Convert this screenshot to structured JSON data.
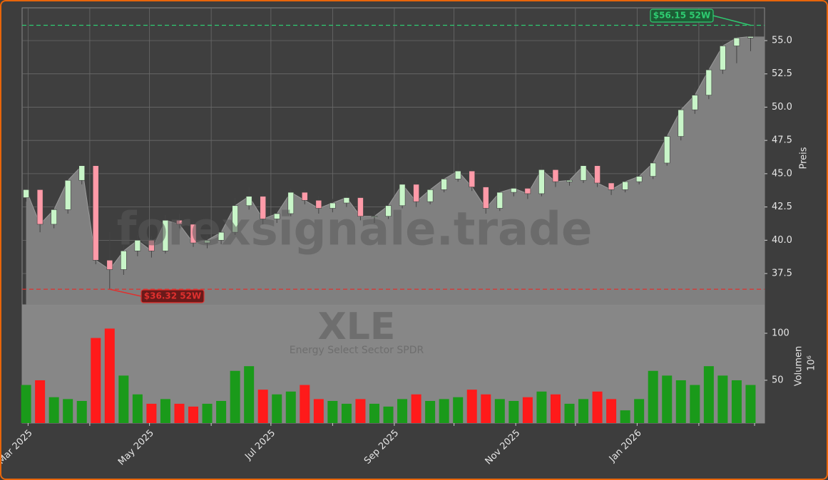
{
  "chart_data": [
    {
      "type": "candlestick",
      "watermark": "forexsignale.trade",
      "ylabel": "Preis",
      "x": [
        "2025-02-28",
        "2025-03-07",
        "2025-03-14",
        "2025-03-21",
        "2025-03-28",
        "2025-04-04",
        "2025-04-11",
        "2025-04-18",
        "2025-04-25",
        "2025-05-02",
        "2025-05-09",
        "2025-05-16",
        "2025-05-23",
        "2025-05-30",
        "2025-06-06",
        "2025-06-13",
        "2025-06-20",
        "2025-06-27",
        "2025-07-04",
        "2025-07-11",
        "2025-07-18",
        "2025-07-25",
        "2025-08-01",
        "2025-08-08",
        "2025-08-15",
        "2025-08-22",
        "2025-08-29",
        "2025-09-05",
        "2025-09-12",
        "2025-09-19",
        "2025-09-26",
        "2025-10-03",
        "2025-10-10",
        "2025-10-17",
        "2025-10-24",
        "2025-10-31",
        "2025-11-07",
        "2025-11-14",
        "2025-11-21",
        "2025-11-28",
        "2025-12-05",
        "2025-12-12",
        "2025-12-19",
        "2025-12-26",
        "2026-01-02",
        "2026-01-09",
        "2026-01-16",
        "2026-01-23",
        "2026-01-30",
        "2026-02-06",
        "2026-02-13",
        "2026-02-20",
        "2026-02-27"
      ],
      "open": [
        43.2,
        43.8,
        41.2,
        42.3,
        44.5,
        45.6,
        38.5,
        37.8,
        39.2,
        40.0,
        39.2,
        41.5,
        41.2,
        39.8,
        40.0,
        40.6,
        42.6,
        43.3,
        41.6,
        42.0,
        43.6,
        43.0,
        42.4,
        42.8,
        43.2,
        41.8,
        41.8,
        42.6,
        44.2,
        42.9,
        43.8,
        44.6,
        45.2,
        44.0,
        42.4,
        43.6,
        43.9,
        43.5,
        45.3,
        44.4,
        44.5,
        45.6,
        44.3,
        43.8,
        44.4,
        44.8,
        45.8,
        47.8,
        49.8,
        50.9,
        52.8,
        54.6,
        55.2
      ],
      "high": [
        44.2,
        44.0,
        42.8,
        44.8,
        46.0,
        45.9,
        40.6,
        39.6,
        40.4,
        40.3,
        41.9,
        42.0,
        41.4,
        40.4,
        40.9,
        43.2,
        44.0,
        43.5,
        42.3,
        43.9,
        43.8,
        43.3,
        43.1,
        43.7,
        43.4,
        42.2,
        42.9,
        44.6,
        44.5,
        44.1,
        44.9,
        45.8,
        45.4,
        44.2,
        43.9,
        44.1,
        44.0,
        45.7,
        45.5,
        44.8,
        46.0,
        45.8,
        44.5,
        44.6,
        45.0,
        46.1,
        48.2,
        50.2,
        51.5,
        53.2,
        55.0,
        55.9,
        56.15
      ],
      "low": [
        42.9,
        40.6,
        40.9,
        42.0,
        44.2,
        38.2,
        36.32,
        37.4,
        38.8,
        38.7,
        39.0,
        40.9,
        39.5,
        39.4,
        39.7,
        40.4,
        42.3,
        41.2,
        41.3,
        41.8,
        42.7,
        42.0,
        42.1,
        42.5,
        41.5,
        41.3,
        41.6,
        42.4,
        42.5,
        42.7,
        43.6,
        44.4,
        43.7,
        42.0,
        42.2,
        43.3,
        43.1,
        43.3,
        44.0,
        44.1,
        44.3,
        44.0,
        43.4,
        43.6,
        44.2,
        44.6,
        45.6,
        47.5,
        49.5,
        50.6,
        52.5,
        53.3,
        54.2
      ],
      "close": [
        43.8,
        41.2,
        42.3,
        44.5,
        45.6,
        38.5,
        37.8,
        39.2,
        40.0,
        39.2,
        41.5,
        41.2,
        39.8,
        40.0,
        40.6,
        42.6,
        43.3,
        41.6,
        42.0,
        43.6,
        43.0,
        42.4,
        42.8,
        43.2,
        41.8,
        41.8,
        42.6,
        44.2,
        42.9,
        43.8,
        44.6,
        45.2,
        44.0,
        42.4,
        43.6,
        43.9,
        43.5,
        45.3,
        44.4,
        44.5,
        45.6,
        44.3,
        43.8,
        44.4,
        44.8,
        45.8,
        47.8,
        49.8,
        50.9,
        52.8,
        54.6,
        55.2,
        55.3
      ],
      "up_color": "#c8f5c8",
      "down_color": "#ff9aa8",
      "area_color": "#808080",
      "ylim": [
        35.15,
        57.46
      ],
      "yticks": [
        37.5,
        {
          "value": 40,
          "label": "40.0"
        },
        42.5,
        {
          "value": 45,
          "label": "45.0"
        },
        47.5,
        {
          "value": 50,
          "label": "50.0"
        },
        52.5,
        {
          "value": 55,
          "label": "55.0"
        }
      ],
      "xlim": [
        "2025-02-26",
        "2026-03-06"
      ],
      "xticks": [
        {
          "value": "2025-03-01",
          "label": "Mar 2025"
        },
        {
          "value": "2025-04-01",
          "label": null
        },
        {
          "value": "2025-05-01",
          "label": "May 2025"
        },
        {
          "value": "2025-06-01",
          "label": null
        },
        {
          "value": "2025-07-01",
          "label": "Jul 2025"
        },
        {
          "value": "2025-08-01",
          "label": null
        },
        {
          "value": "2025-09-01",
          "label": "Sep 2025"
        },
        {
          "value": "2025-10-01",
          "label": null
        },
        {
          "value": "2025-11-01",
          "label": "Nov 2025"
        },
        {
          "value": "2025-12-01",
          "label": null
        },
        {
          "value": "2026-01-01",
          "label": "Jan 2026"
        },
        {
          "value": "2026-02-01",
          "label": null
        },
        {
          "value": "2026-03-01",
          "label": null
        }
      ],
      "grid": true,
      "high_annotation": {
        "value": 56.15,
        "label": "$56.15 52W",
        "color": "#2ecc71"
      },
      "low_annotation": {
        "value": 36.32,
        "label": "$36.32 52W",
        "color": "#e0302e"
      }
    },
    {
      "type": "bar",
      "title": "XLE",
      "subtitle": "Energy Select Sector SPDR",
      "ylabel": "Volumen",
      "offset_label": "10⁶",
      "values": [
        45,
        50,
        32,
        30,
        28,
        95,
        105,
        55,
        35,
        25,
        30,
        25,
        22,
        25,
        28,
        60,
        65,
        40,
        35,
        38,
        45,
        30,
        28,
        25,
        30,
        25,
        22,
        30,
        35,
        28,
        30,
        32,
        40,
        35,
        30,
        28,
        32,
        38,
        35,
        25,
        30,
        38,
        30,
        18,
        30,
        60,
        55,
        50,
        45,
        65,
        55,
        50,
        45
      ],
      "up_color": "#1a9a1a",
      "down_color": "#ff1a1a",
      "ylim": [
        4.5,
        130.3
      ],
      "yticks": [
        50,
        100
      ],
      "grid": false
    }
  ]
}
